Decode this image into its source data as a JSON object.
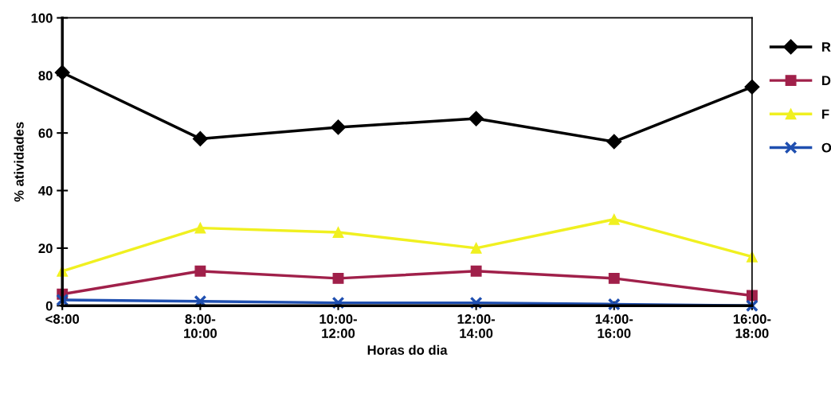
{
  "chart_data": {
    "type": "line",
    "xlabel": "Horas do dia",
    "ylabel": "% atividades",
    "categories": [
      "<8:00",
      "8:00-\n10:00",
      "10:00-\n12:00",
      "12:00-\n14:00",
      "14:00-\n16:00",
      "16:00-\n18:00"
    ],
    "ylim": [
      0,
      100
    ],
    "yticks": [
      0,
      20,
      40,
      60,
      80,
      100
    ],
    "grid": false,
    "legend": "right",
    "series": [
      {
        "name": "R",
        "color": "#000000",
        "marker": "diamond",
        "values": [
          81,
          58,
          62,
          65,
          57,
          76
        ]
      },
      {
        "name": "D",
        "color": "#a0204a",
        "marker": "square",
        "values": [
          4,
          12,
          9.5,
          12,
          9.5,
          3.5
        ]
      },
      {
        "name": "F",
        "color": "#f0f020",
        "marker": "triangle",
        "values": [
          12,
          27,
          25.5,
          20,
          30,
          17
        ]
      },
      {
        "name": "O",
        "color": "#1f4fb0",
        "marker": "cross",
        "values": [
          2,
          1.5,
          1,
          1,
          0.5,
          0
        ]
      }
    ]
  }
}
